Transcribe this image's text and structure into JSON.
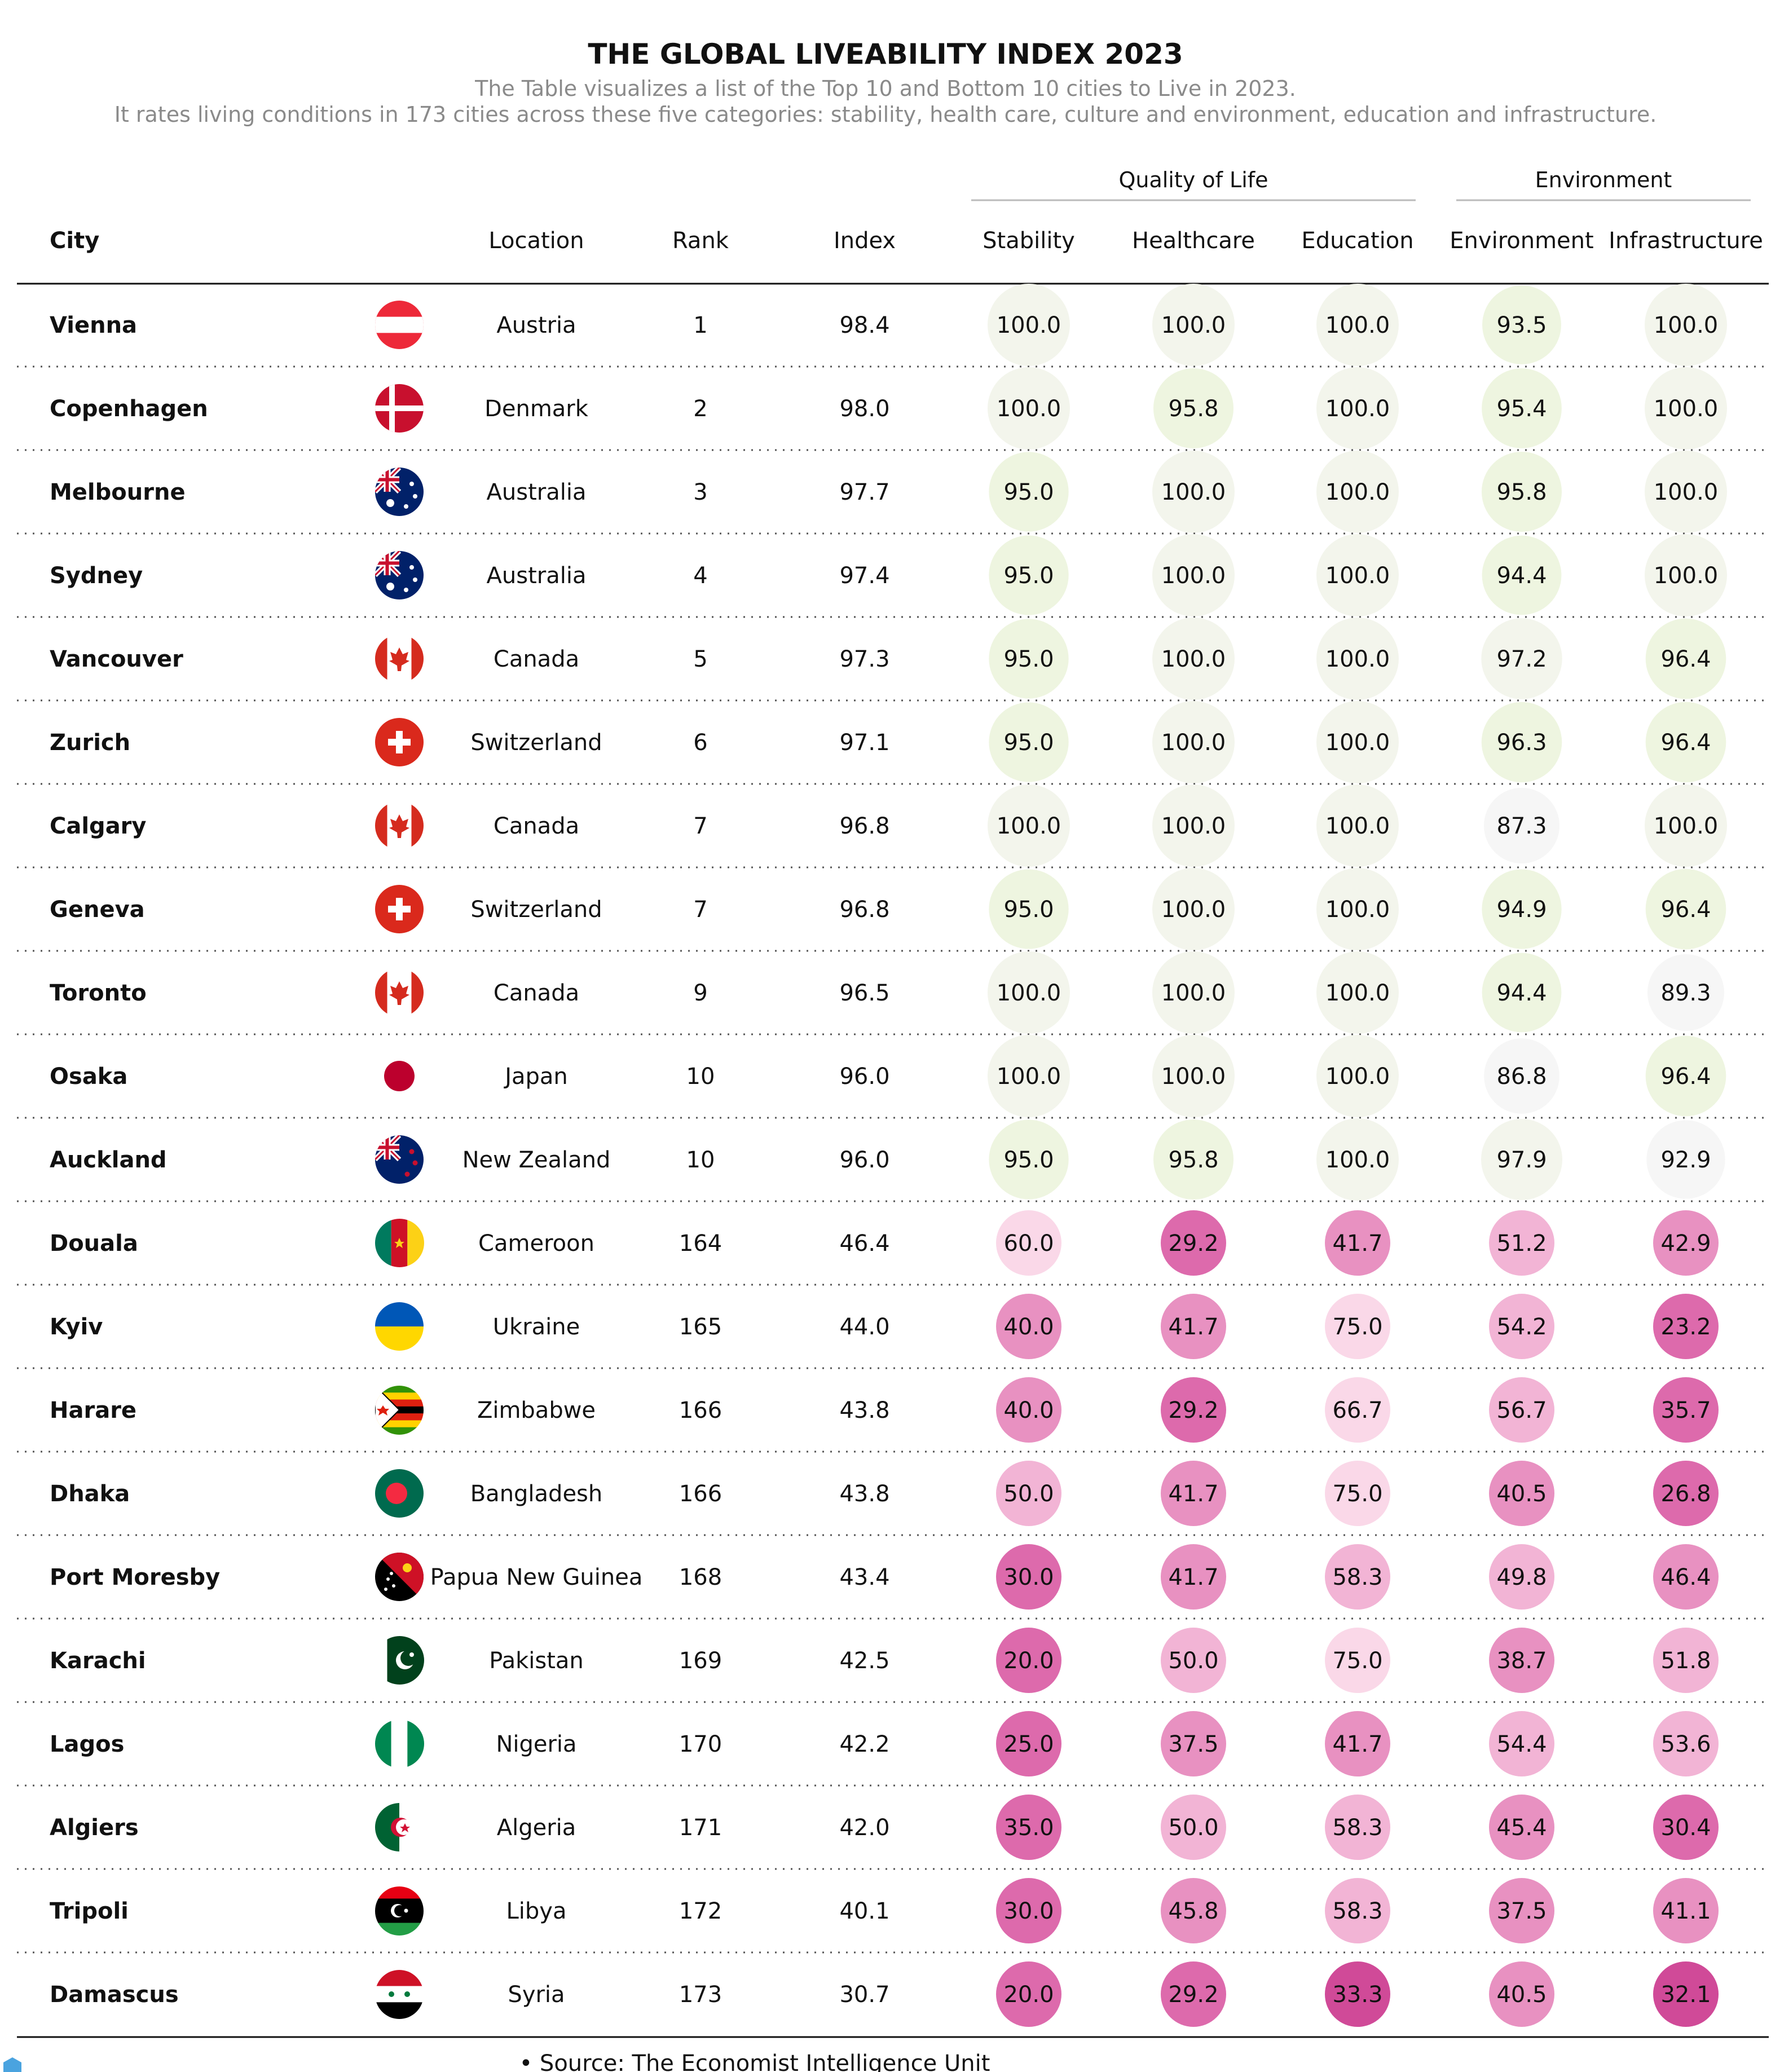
{
  "title": "THE GLOBAL LIVEABILITY INDEX 2023",
  "subtitle_line1": "The Table visualizes a list of the Top 10 and Bottom 10 cities to Live in 2023.",
  "subtitle_line2": "It rates living conditions in 173 cities across these five categories: stability, health care, culture and environment, education and infrastructure.",
  "source": "• Source: The Economist Intelligence Unit",
  "group_headers": [
    "Quality of Life",
    "Environment"
  ],
  "columns": [
    "City",
    "Location",
    "Rank",
    "Index",
    "Stability",
    "Healthcare",
    "Education",
    "Environment",
    "Infrastructure"
  ],
  "colors": {
    "high_circle": [
      "#f6f6f6",
      "#f3f5ec",
      "#eef5e0"
    ],
    "low_circle": [
      "#fad8e8",
      "#f2b4d5",
      "#e891c1",
      "#dd6aac",
      "#d04a98"
    ],
    "rule": "#111111",
    "dotted": "#555555",
    "group_line": "#bbbbbb"
  },
  "chart_data": {
    "type": "table",
    "rows": [
      {
        "city": "Vienna",
        "flag": "flag-austria",
        "location": "Austria",
        "rank": "1",
        "index": "98.4",
        "stability": "100.0",
        "healthcare": "100.0",
        "education": "100.0",
        "environment": "93.5",
        "infrastructure": "100.0"
      },
      {
        "city": "Copenhagen",
        "flag": "flag-denmark",
        "location": "Denmark",
        "rank": "2",
        "index": "98.0",
        "stability": "100.0",
        "healthcare": "95.8",
        "education": "100.0",
        "environment": "95.4",
        "infrastructure": "100.0"
      },
      {
        "city": "Melbourne",
        "flag": "flag-australia",
        "location": "Australia",
        "rank": "3",
        "index": "97.7",
        "stability": "95.0",
        "healthcare": "100.0",
        "education": "100.0",
        "environment": "95.8",
        "infrastructure": "100.0"
      },
      {
        "city": "Sydney",
        "flag": "flag-australia",
        "location": "Australia",
        "rank": "4",
        "index": "97.4",
        "stability": "95.0",
        "healthcare": "100.0",
        "education": "100.0",
        "environment": "94.4",
        "infrastructure": "100.0"
      },
      {
        "city": "Vancouver",
        "flag": "flag-canada",
        "location": "Canada",
        "rank": "5",
        "index": "97.3",
        "stability": "95.0",
        "healthcare": "100.0",
        "education": "100.0",
        "environment": "97.2",
        "infrastructure": "96.4"
      },
      {
        "city": "Zurich",
        "flag": "flag-switzerland",
        "location": "Switzerland",
        "rank": "6",
        "index": "97.1",
        "stability": "95.0",
        "healthcare": "100.0",
        "education": "100.0",
        "environment": "96.3",
        "infrastructure": "96.4"
      },
      {
        "city": "Calgary",
        "flag": "flag-canada",
        "location": "Canada",
        "rank": "7",
        "index": "96.8",
        "stability": "100.0",
        "healthcare": "100.0",
        "education": "100.0",
        "environment": "87.3",
        "infrastructure": "100.0"
      },
      {
        "city": "Geneva",
        "flag": "flag-switzerland",
        "location": "Switzerland",
        "rank": "7",
        "index": "96.8",
        "stability": "95.0",
        "healthcare": "100.0",
        "education": "100.0",
        "environment": "94.9",
        "infrastructure": "96.4"
      },
      {
        "city": "Toronto",
        "flag": "flag-canada",
        "location": "Canada",
        "rank": "9",
        "index": "96.5",
        "stability": "100.0",
        "healthcare": "100.0",
        "education": "100.0",
        "environment": "94.4",
        "infrastructure": "89.3"
      },
      {
        "city": "Osaka",
        "flag": "flag-japan",
        "location": "Japan",
        "rank": "10",
        "index": "96.0",
        "stability": "100.0",
        "healthcare": "100.0",
        "education": "100.0",
        "environment": "86.8",
        "infrastructure": "96.4"
      },
      {
        "city": "Auckland",
        "flag": "flag-new-zealand",
        "location": "New Zealand",
        "rank": "10",
        "index": "96.0",
        "stability": "95.0",
        "healthcare": "95.8",
        "education": "100.0",
        "environment": "97.9",
        "infrastructure": "92.9"
      },
      {
        "city": "Douala",
        "flag": "flag-cameroon",
        "location": "Cameroon",
        "rank": "164",
        "index": "46.4",
        "stability": "60.0",
        "healthcare": "29.2",
        "education": "41.7",
        "environment": "51.2",
        "infrastructure": "42.9"
      },
      {
        "city": "Kyiv",
        "flag": "flag-ukraine",
        "location": "Ukraine",
        "rank": "165",
        "index": "44.0",
        "stability": "40.0",
        "healthcare": "41.7",
        "education": "75.0",
        "environment": "54.2",
        "infrastructure": "23.2"
      },
      {
        "city": "Harare",
        "flag": "flag-zimbabwe",
        "location": "Zimbabwe",
        "rank": "166",
        "index": "43.8",
        "stability": "40.0",
        "healthcare": "29.2",
        "education": "66.7",
        "environment": "56.7",
        "infrastructure": "35.7"
      },
      {
        "city": "Dhaka",
        "flag": "flag-bangladesh",
        "location": "Bangladesh",
        "rank": "166",
        "index": "43.8",
        "stability": "50.0",
        "healthcare": "41.7",
        "education": "75.0",
        "environment": "40.5",
        "infrastructure": "26.8"
      },
      {
        "city": "Port Moresby",
        "flag": "flag-papua-new-guinea",
        "location": "Papua New Guinea",
        "rank": "168",
        "index": "43.4",
        "stability": "30.0",
        "healthcare": "41.7",
        "education": "58.3",
        "environment": "49.8",
        "infrastructure": "46.4"
      },
      {
        "city": "Karachi",
        "flag": "flag-pakistan",
        "location": "Pakistan",
        "rank": "169",
        "index": "42.5",
        "stability": "20.0",
        "healthcare": "50.0",
        "education": "75.0",
        "environment": "38.7",
        "infrastructure": "51.8"
      },
      {
        "city": "Lagos",
        "flag": "flag-nigeria",
        "location": "Nigeria",
        "rank": "170",
        "index": "42.2",
        "stability": "25.0",
        "healthcare": "37.5",
        "education": "41.7",
        "environment": "54.4",
        "infrastructure": "53.6"
      },
      {
        "city": "Algiers",
        "flag": "flag-algeria",
        "location": "Algeria",
        "rank": "171",
        "index": "42.0",
        "stability": "35.0",
        "healthcare": "50.0",
        "education": "58.3",
        "environment": "45.4",
        "infrastructure": "30.4"
      },
      {
        "city": "Tripoli",
        "flag": "flag-libya",
        "location": "Libya",
        "rank": "172",
        "index": "40.1",
        "stability": "30.0",
        "healthcare": "45.8",
        "education": "58.3",
        "environment": "37.5",
        "infrastructure": "41.1"
      },
      {
        "city": "Damascus",
        "flag": "flag-syria",
        "location": "Syria",
        "rank": "173",
        "index": "30.7",
        "stability": "20.0",
        "healthcare": "29.2",
        "education": "33.3",
        "environment": "40.5",
        "infrastructure": "32.1"
      }
    ]
  }
}
